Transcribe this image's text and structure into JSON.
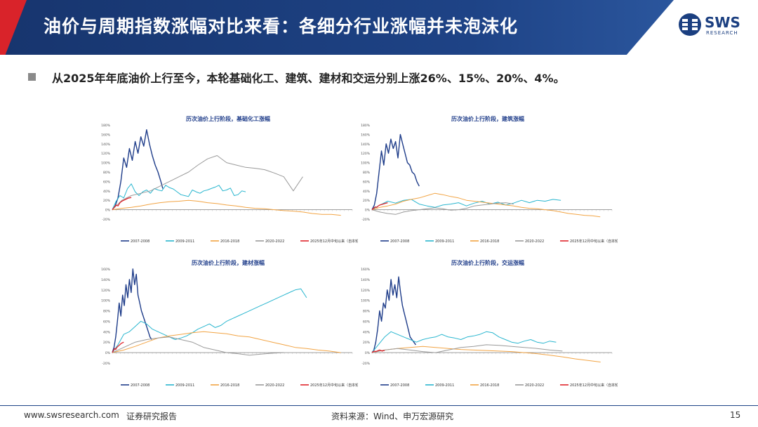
{
  "header": {
    "title": "油价与周期指数涨幅对比来看：各细分行业涨幅并未泡沫化",
    "logo_text": "SWS",
    "logo_sub": "RESEARCH"
  },
  "bullet": {
    "text": "从2025年年底油价上行至今，本轮基础化工、建筑、建材和交运分别上涨26%、15%、20%、4%。"
  },
  "footer": {
    "website": "www.swsresearch.com",
    "report_type": "证券研究报告",
    "source": "资料来源：Wind、申万宏源研究",
    "page_number": "15"
  },
  "colors": {
    "s2007": "#1f3d8a",
    "s2009": "#29b6cf",
    "s2016": "#f2a444",
    "s2020": "#9a9a9a",
    "s2025": "#e0242b"
  },
  "chart_data": [
    {
      "type": "line",
      "title": "历次油价上行阶段，基础化工涨幅",
      "ylim": [
        -20,
        180
      ],
      "yticks": [
        "-20%",
        "0%",
        "20%",
        "40%",
        "60%",
        "80%",
        "100%",
        "120%",
        "140%",
        "160%",
        "180%"
      ],
      "x_axis": "trading days since oil-price low (tick labels too small to read)",
      "legend": [
        "2007-2008",
        "2009-2011",
        "2016-2018",
        "2020-2022",
        "2025年12月中旬以来（自本轮油价低点以来）"
      ],
      "series": [
        {
          "name": "2007-2008",
          "color_key": "s2007",
          "x": [
            0,
            3,
            6,
            9,
            12,
            15,
            18,
            21,
            24,
            27,
            30,
            33,
            36,
            39,
            42,
            45,
            48,
            51,
            53
          ],
          "values": [
            0,
            8,
            25,
            60,
            110,
            90,
            130,
            105,
            145,
            120,
            155,
            135,
            170,
            140,
            115,
            95,
            80,
            60,
            45
          ]
        },
        {
          "name": "2009-2011",
          "color_key": "s2009",
          "x": [
            0,
            4,
            8,
            12,
            16,
            20,
            24,
            28,
            32,
            36,
            40,
            44,
            48,
            52,
            56,
            60,
            64,
            68,
            72,
            76,
            80,
            84,
            88,
            92,
            96,
            100,
            104,
            108,
            112,
            116,
            120,
            124,
            128,
            132,
            136,
            140
          ],
          "values": [
            0,
            18,
            30,
            25,
            45,
            55,
            38,
            30,
            38,
            42,
            35,
            45,
            42,
            40,
            52,
            47,
            44,
            38,
            32,
            30,
            28,
            42,
            38,
            35,
            40,
            42,
            45,
            48,
            52,
            40,
            42,
            46,
            30,
            32,
            40,
            38
          ]
        },
        {
          "name": "2016-2018",
          "color_key": "s2016",
          "x": [
            0,
            10,
            20,
            30,
            40,
            50,
            60,
            70,
            80,
            90,
            100,
            110,
            120,
            130,
            140,
            150,
            160,
            170,
            180,
            190,
            200,
            210,
            220,
            230,
            240
          ],
          "values": [
            0,
            3,
            5,
            8,
            12,
            15,
            17,
            18,
            20,
            18,
            15,
            13,
            10,
            8,
            5,
            3,
            2,
            0,
            -2,
            -3,
            -5,
            -8,
            -10,
            -10,
            -12
          ]
        },
        {
          "name": "2020-2022",
          "color_key": "s2020",
          "x": [
            0,
            10,
            20,
            30,
            40,
            50,
            60,
            70,
            80,
            90,
            100,
            110,
            120,
            130,
            140,
            150,
            160,
            170,
            180,
            190,
            200
          ],
          "values": [
            0,
            20,
            30,
            35,
            40,
            50,
            60,
            70,
            80,
            95,
            108,
            115,
            100,
            95,
            90,
            88,
            85,
            78,
            70,
            40,
            70
          ]
        },
        {
          "name": "2025年12月中旬以来（自本轮油价低点以来）",
          "color_key": "s2025",
          "x": [
            0,
            2,
            4,
            6,
            8,
            10,
            12,
            14,
            16,
            18,
            20
          ],
          "values": [
            0,
            5,
            10,
            8,
            15,
            18,
            20,
            22,
            24,
            25,
            26
          ]
        }
      ]
    },
    {
      "type": "line",
      "title": "历次油价上行阶段，建筑涨幅",
      "ylim": [
        -20,
        180
      ],
      "yticks": [
        "-20%",
        "0%",
        "20%",
        "40%",
        "60%",
        "80%",
        "100%",
        "120%",
        "140%",
        "160%",
        "180%"
      ],
      "x_axis": "trading days since oil-price low (tick labels too small to read)",
      "legend": [
        "2007-2008",
        "2009-2011",
        "2016-2018",
        "2020-2022",
        "2025年12月中旬以来（自本轮油价低点以来）"
      ],
      "series": [
        {
          "name": "2007-2008",
          "color_key": "s2007",
          "x": [
            0,
            3,
            6,
            9,
            12,
            15,
            18,
            21,
            24,
            27,
            30,
            33,
            36,
            39,
            42,
            45,
            48,
            51,
            54,
            57,
            60
          ],
          "values": [
            0,
            10,
            35,
            80,
            125,
            95,
            140,
            120,
            150,
            130,
            145,
            110,
            160,
            140,
            120,
            100,
            95,
            80,
            75,
            60,
            50
          ]
        },
        {
          "name": "2009-2011",
          "color_key": "s2009",
          "x": [
            0,
            10,
            20,
            30,
            40,
            50,
            60,
            70,
            80,
            90,
            100,
            110,
            120,
            130,
            140,
            150,
            160,
            170,
            180,
            190,
            200,
            210,
            220,
            230,
            240
          ],
          "values": [
            0,
            10,
            18,
            14,
            20,
            22,
            12,
            8,
            5,
            10,
            12,
            15,
            8,
            14,
            18,
            12,
            16,
            10,
            14,
            20,
            15,
            20,
            18,
            22,
            20
          ]
        },
        {
          "name": "2016-2018",
          "color_key": "s2016",
          "x": [
            0,
            10,
            20,
            30,
            40,
            50,
            60,
            70,
            80,
            90,
            100,
            110,
            120,
            130,
            140,
            150,
            160,
            170,
            180,
            190,
            200,
            210,
            220,
            230,
            240,
            250,
            260,
            270,
            280,
            290
          ],
          "values": [
            0,
            5,
            8,
            12,
            18,
            22,
            25,
            30,
            35,
            32,
            28,
            25,
            20,
            18,
            16,
            14,
            12,
            10,
            8,
            5,
            3,
            2,
            0,
            -2,
            -5,
            -8,
            -10,
            -12,
            -13,
            -15
          ]
        },
        {
          "name": "2020-2022",
          "color_key": "s2020",
          "x": [
            0,
            10,
            20,
            30,
            40,
            50,
            60,
            70,
            80,
            90,
            100,
            110,
            120,
            130,
            140,
            150,
            160,
            170,
            180
          ],
          "values": [
            0,
            -5,
            -8,
            -10,
            -5,
            -2,
            0,
            2,
            4,
            2,
            -1,
            0,
            3,
            8,
            10,
            12,
            14,
            15,
            12
          ]
        },
        {
          "name": "2025年12月中旬以来（自本轮油价低点以来）",
          "color_key": "s2025",
          "x": [
            0,
            2,
            4,
            6,
            8,
            10,
            12,
            14,
            16,
            18,
            20
          ],
          "values": [
            0,
            3,
            6,
            5,
            8,
            10,
            11,
            12,
            13,
            14,
            15
          ]
        }
      ]
    },
    {
      "type": "line",
      "title": "历次油价上行阶段，建材涨幅",
      "ylim": [
        -20,
        160
      ],
      "yticks": [
        "-20%",
        "0%",
        "20%",
        "40%",
        "60%",
        "80%",
        "100%",
        "120%",
        "140%",
        "160%"
      ],
      "x_axis": "trading days since oil-price low (tick labels too small to read)",
      "legend": [
        "2007-2008",
        "2009-2011",
        "2016-2018",
        "2020-2022",
        "2025年12月中旬以来（自本轮油价低点以来）"
      ],
      "series": [
        {
          "name": "2007-2008",
          "color_key": "s2007",
          "x": [
            0,
            3,
            6,
            9,
            12,
            15,
            18,
            21,
            24,
            27,
            30,
            33,
            36,
            39,
            42,
            45,
            48,
            51,
            54,
            57,
            60,
            63,
            66,
            69
          ],
          "values": [
            0,
            10,
            30,
            60,
            95,
            70,
            110,
            90,
            130,
            105,
            140,
            115,
            160,
            130,
            150,
            110,
            95,
            80,
            70,
            60,
            50,
            40,
            30,
            25
          ]
        },
        {
          "name": "2009-2011",
          "color_key": "s2009",
          "x": [
            0,
            10,
            20,
            30,
            40,
            50,
            60,
            70,
            80,
            90,
            100,
            110,
            120,
            130,
            140,
            150,
            160,
            170,
            180,
            190,
            200,
            210,
            220,
            230,
            240,
            250,
            260,
            270,
            280,
            290,
            300,
            310,
            320,
            330,
            340
          ],
          "values": [
            0,
            15,
            35,
            40,
            50,
            60,
            55,
            45,
            40,
            35,
            30,
            25,
            28,
            32,
            38,
            45,
            50,
            55,
            48,
            52,
            60,
            65,
            70,
            75,
            80,
            85,
            90,
            95,
            100,
            105,
            110,
            115,
            120,
            122,
            105
          ]
        },
        {
          "name": "2016-2018",
          "color_key": "s2016",
          "x": [
            0,
            20,
            40,
            60,
            80,
            100,
            120,
            140,
            160,
            180,
            200,
            220,
            240,
            260,
            280,
            300,
            320,
            340,
            360,
            380,
            400
          ],
          "values": [
            0,
            5,
            12,
            20,
            28,
            32,
            35,
            38,
            40,
            38,
            36,
            32,
            30,
            25,
            20,
            15,
            10,
            8,
            5,
            3,
            0
          ]
        },
        {
          "name": "2020-2022",
          "color_key": "s2020",
          "x": [
            0,
            20,
            40,
            60,
            80,
            100,
            120,
            140,
            160,
            180,
            200,
            220,
            240,
            260,
            280,
            300
          ],
          "values": [
            0,
            10,
            20,
            25,
            28,
            30,
            25,
            20,
            10,
            5,
            0,
            -2,
            -5,
            -3,
            -1,
            0
          ]
        },
        {
          "name": "2025年12月中旬以来（自本轮油价低点以来）",
          "color_key": "s2025",
          "x": [
            0,
            2,
            4,
            6,
            8,
            10,
            12,
            14,
            16,
            18,
            20
          ],
          "values": [
            0,
            4,
            8,
            6,
            10,
            12,
            14,
            16,
            18,
            19,
            20
          ]
        }
      ]
    },
    {
      "type": "line",
      "title": "历次油价上行阶段，交运涨幅",
      "ylim": [
        -20,
        160
      ],
      "yticks": [
        "-20%",
        "0%",
        "20%",
        "40%",
        "60%",
        "80%",
        "100%",
        "120%",
        "140%",
        "160%"
      ],
      "x_axis": "trading days since oil-price low (tick labels too small to read)",
      "legend": [
        "2007-2008",
        "2009-2011",
        "2016-2018",
        "2020-2022",
        "2025年12月中旬以来（自本轮油价低点以来）"
      ],
      "series": [
        {
          "name": "2007-2008",
          "color_key": "s2007",
          "x": [
            0,
            3,
            6,
            9,
            12,
            15,
            18,
            21,
            24,
            27,
            30,
            33,
            36,
            39,
            42,
            45,
            48,
            51,
            54,
            57,
            60,
            63,
            66,
            69
          ],
          "values": [
            0,
            5,
            20,
            45,
            80,
            60,
            95,
            85,
            120,
            100,
            140,
            110,
            130,
            105,
            145,
            115,
            90,
            75,
            60,
            45,
            30,
            25,
            20,
            15
          ]
        },
        {
          "name": "2009-2011",
          "color_key": "s2009",
          "x": [
            0,
            10,
            20,
            30,
            40,
            50,
            60,
            70,
            80,
            90,
            100,
            110,
            120,
            130,
            140,
            150,
            160,
            170,
            180,
            190,
            200,
            210,
            220,
            230,
            240,
            250,
            260,
            270,
            280,
            290
          ],
          "values": [
            0,
            15,
            30,
            40,
            35,
            30,
            25,
            20,
            25,
            28,
            30,
            35,
            30,
            28,
            25,
            30,
            32,
            35,
            40,
            38,
            30,
            25,
            20,
            18,
            22,
            25,
            20,
            18,
            22,
            20
          ]
        },
        {
          "name": "2016-2018",
          "color_key": "s2016",
          "x": [
            0,
            20,
            40,
            60,
            80,
            100,
            120,
            140,
            160,
            180,
            200,
            220,
            240,
            260,
            280,
            300,
            320,
            340,
            360
          ],
          "values": [
            0,
            5,
            8,
            10,
            12,
            10,
            8,
            6,
            5,
            4,
            3,
            2,
            0,
            -2,
            -5,
            -8,
            -12,
            -15,
            -18
          ]
        },
        {
          "name": "2020-2022",
          "color_key": "s2020",
          "x": [
            0,
            20,
            40,
            60,
            80,
            100,
            120,
            140,
            160,
            180,
            200,
            220,
            240,
            260,
            280,
            300
          ],
          "values": [
            0,
            5,
            8,
            5,
            2,
            0,
            5,
            10,
            12,
            15,
            14,
            12,
            10,
            8,
            5,
            3
          ]
        },
        {
          "name": "2025年12月中旬以来（自本轮油价低点以来）",
          "color_key": "s2025",
          "x": [
            0,
            2,
            4,
            6,
            8,
            10,
            12,
            14,
            16,
            18,
            20
          ],
          "values": [
            0,
            2,
            3,
            2,
            3,
            4,
            5,
            4,
            3,
            4,
            4
          ]
        }
      ]
    }
  ]
}
